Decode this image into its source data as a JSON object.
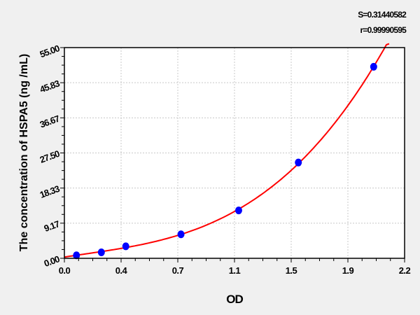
{
  "chart_data": {
    "type": "scatter",
    "title": "",
    "xlabel": "OD",
    "ylabel": "The concentration of HSPA5 (ng /mL)",
    "xlim": [
      0,
      2.2
    ],
    "ylim": [
      0,
      55
    ],
    "x_tick_labels": [
      "0.0",
      "0.4",
      "0.7",
      "1.1",
      "1.5",
      "1.9",
      "2.2"
    ],
    "y_tick_labels": [
      "0.00",
      "9.17",
      "18.33",
      "27.50",
      "36.67",
      "45.83",
      "55.00"
    ],
    "grid": true,
    "stats": {
      "s": "S=0.31440582",
      "r": "r=0.99990595"
    },
    "series": [
      {
        "type": "scatter",
        "color": "#0000ff",
        "x": [
          0.078,
          0.239,
          0.397,
          0.754,
          1.127,
          1.513,
          2.0
        ],
        "y": [
          0.78,
          1.56,
          3.125,
          6.25,
          12.5,
          25,
          50
        ]
      },
      {
        "type": "line",
        "color": "#ff0000",
        "x_range": [
          0,
          2.1
        ]
      }
    ],
    "colors": {
      "background": "#f0f0f0",
      "plot": "#ffffff",
      "grid": "#c8c8c8"
    }
  }
}
